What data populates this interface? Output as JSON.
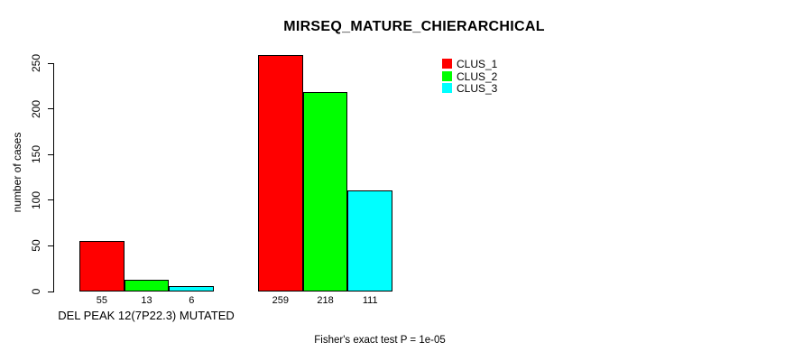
{
  "chart_data": {
    "type": "bar",
    "title": "MIRSEQ_MATURE_CHIERARCHICAL",
    "ylabel": "number of cases",
    "xlabel": "",
    "ylim": [
      0,
      250
    ],
    "yticks": [
      0,
      50,
      100,
      150,
      200,
      250
    ],
    "grid": false,
    "legend_position": "top-right",
    "series": [
      {
        "name": "CLUS_1",
        "color": "#ff0000"
      },
      {
        "name": "CLUS_2",
        "color": "#00ff00"
      },
      {
        "name": "CLUS_3",
        "color": "#00ffff"
      }
    ],
    "groups": [
      {
        "label": "DEL PEAK 12(7P22.3) MUTATED",
        "values": [
          55,
          13,
          6
        ]
      },
      {
        "label": "",
        "values": [
          259,
          218,
          111
        ]
      }
    ],
    "bar_border_color": "#000000",
    "axis_color": "#000000",
    "annotation": "Fisher's exact test P = 1e-05"
  }
}
